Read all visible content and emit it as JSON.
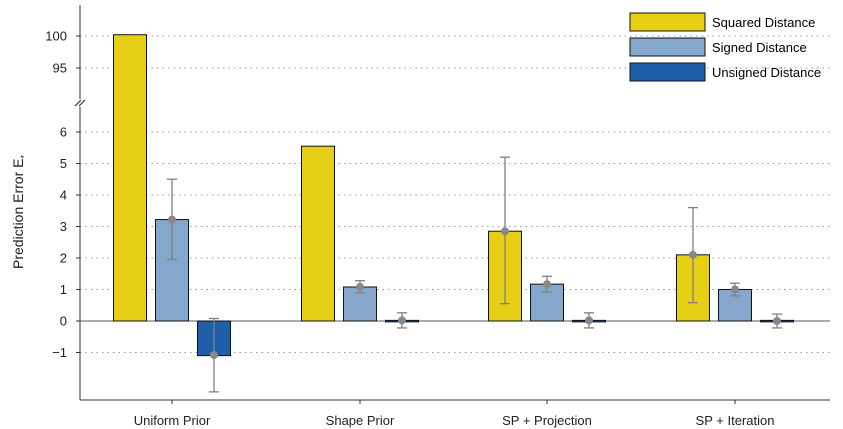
{
  "chart_data": {
    "type": "bar",
    "title": "",
    "xlabel": "",
    "ylabel": "Prediction Error E",
    "ylabel_subscript": "*",
    "y_axis_break": true,
    "ylim_lower": [
      -2.2,
      6.6
    ],
    "ylim_upper": [
      93,
      104
    ],
    "yticks_lower": [
      "−1",
      "0",
      "1",
      "2",
      "3",
      "4",
      "5",
      "6"
    ],
    "yticks_upper": [
      "95",
      "100"
    ],
    "grid": "horizontal dotted",
    "legend_position": "top-right",
    "categories": [
      "Uniform Prior",
      "Shape Prior",
      "SP + Projection",
      "SP + Iteration"
    ],
    "series": [
      {
        "name": "Squared Distance",
        "color": "#e6cf14",
        "values": [
          100.2,
          5.55,
          2.85,
          2.1
        ],
        "error_center": [
          null,
          null,
          2.85,
          2.1
        ],
        "error_low": [
          null,
          null,
          0.55,
          0.58
        ],
        "error_high": [
          null,
          null,
          5.2,
          3.6
        ]
      },
      {
        "name": "Signed Distance",
        "color": "#86a7cc",
        "values": [
          3.22,
          1.08,
          1.17,
          1.0
        ],
        "error_center": [
          3.22,
          1.08,
          1.17,
          1.0
        ],
        "error_low": [
          1.95,
          0.9,
          0.92,
          0.8
        ],
        "error_high": [
          4.5,
          1.28,
          1.42,
          1.2
        ]
      },
      {
        "name": "Unsigned Distance",
        "color": "#1f5ea8",
        "values": [
          -1.1,
          0.02,
          0.02,
          0.02
        ],
        "error_center": [
          -1.08,
          0.02,
          0.02,
          0.0
        ],
        "error_low": [
          -2.25,
          -0.22,
          -0.22,
          -0.22
        ],
        "error_high": [
          0.08,
          0.26,
          0.26,
          0.22
        ]
      }
    ]
  }
}
